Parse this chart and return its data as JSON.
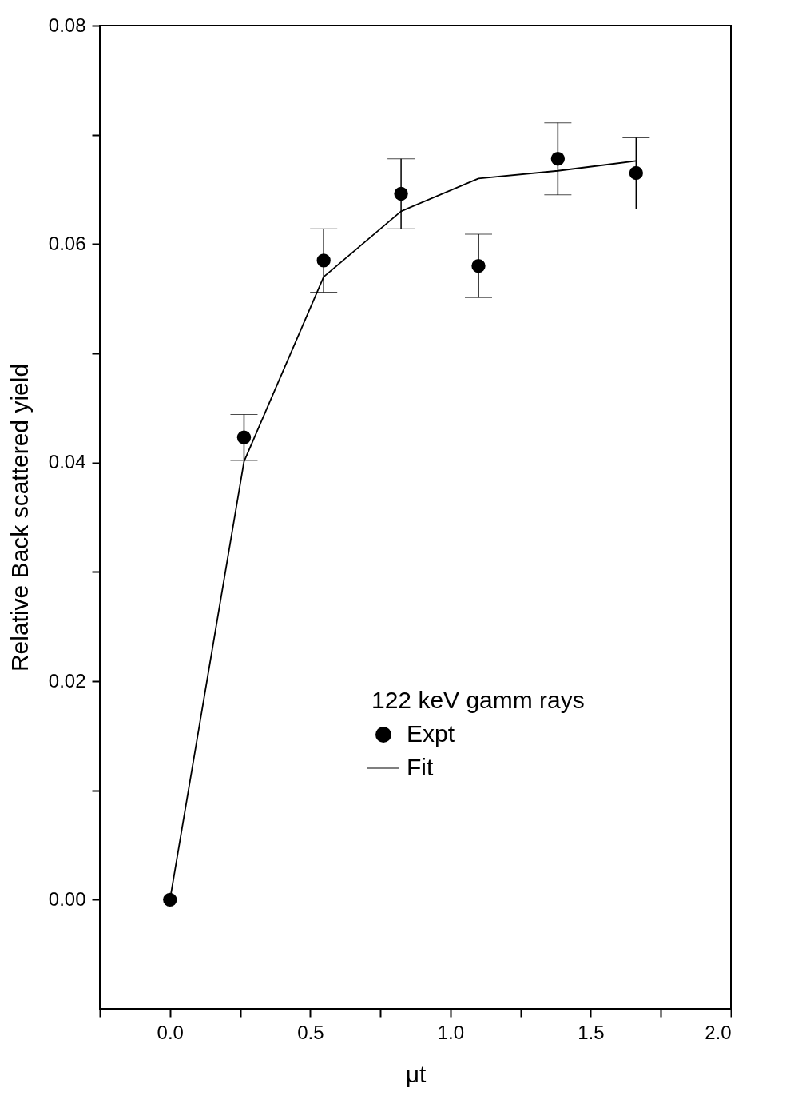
{
  "chart_data": {
    "type": "scatter",
    "xlabel": "μt",
    "ylabel": "Relative Back scattered yield",
    "legend_title": "122 keV gamm rays",
    "xlim": [
      -0.25,
      2.0
    ],
    "ylim": [
      -0.01,
      0.08
    ],
    "xticks": [
      {
        "value": -0.25,
        "label": null
      },
      {
        "value": 0,
        "label": "0.0"
      },
      {
        "value": 0.25,
        "label": null
      },
      0.5,
      {
        "value": 0.75,
        "label": null
      },
      {
        "value": 1,
        "label": "1.0"
      },
      {
        "value": 1.25,
        "label": null
      },
      1.5,
      {
        "value": 1.75,
        "label": null
      },
      {
        "value": 2,
        "label": "2.0"
      }
    ],
    "yticks": [
      {
        "value": 0,
        "label": "0.00"
      },
      {
        "value": 0.01,
        "label": null
      },
      0.02,
      {
        "value": 0.03,
        "label": null
      },
      0.04,
      {
        "value": 0.05,
        "label": null
      },
      0.06,
      {
        "value": 0.07,
        "label": null
      },
      0.08
    ],
    "grid": false,
    "legend": "bottom right",
    "marker": "circle",
    "series": [
      {
        "name": "Expt",
        "color": "#000000",
        "x": [
          0,
          0.264,
          0.548,
          0.824,
          1.1,
          1.383,
          1.662
        ],
        "values": [
          0,
          0.0423,
          0.0585,
          0.0646,
          0.058,
          0.0678,
          0.0665
        ],
        "errors": [
          null,
          0.0021,
          0.0029,
          0.0032,
          0.0029,
          0.0033,
          0.0033
        ]
      },
      {
        "name": "Fit",
        "type": "line",
        "color": "#000000",
        "line_style": "solid",
        "marker": "none",
        "x": [
          0,
          0.264,
          0.548,
          0.824,
          1.1,
          1.383,
          1.662
        ],
        "values": [
          0,
          0.0401,
          0.057,
          0.063,
          0.066,
          0.0667,
          0.0676
        ]
      }
    ]
  }
}
